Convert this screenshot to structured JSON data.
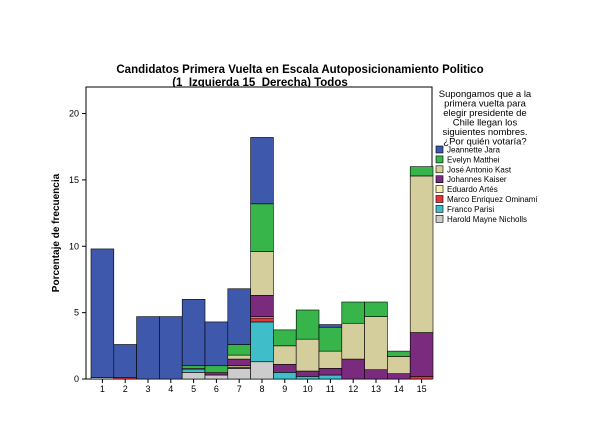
{
  "chart_data": {
    "type": "bar",
    "stacked": true,
    "title": "Candidatos Primera Vuelta en Escala Autoposicionamiento Politico",
    "subtitle": "(1_Izquierda 15_Derecha) Todos",
    "xlabel": "",
    "ylabel": "Porcentaje de frecuencia",
    "ylim": [
      0,
      22
    ],
    "yticks": [
      0,
      5,
      10,
      15,
      20
    ],
    "categories": [
      "1",
      "2",
      "3",
      "4",
      "5",
      "6",
      "7",
      "8",
      "9",
      "10",
      "11",
      "12",
      "13",
      "14",
      "15"
    ],
    "legend": {
      "title_lines": [
        "Supongamos que a la",
        "primera vuelta para",
        "elegir presidente de",
        "Chile llegan los",
        "siguientes nombres.",
        "¿Por quién votaría?"
      ],
      "placement": "right"
    },
    "series": [
      {
        "name": "Harold Mayne Nicholls",
        "color": "#cccccc",
        "values": [
          0.1,
          0,
          0,
          0,
          0.5,
          0.3,
          0.8,
          1.3,
          0,
          0,
          0,
          0,
          0,
          0,
          0
        ]
      },
      {
        "name": "Franco Parisi",
        "color": "#3fbdc8",
        "values": [
          0,
          0,
          0,
          0,
          0.2,
          0,
          0,
          3.0,
          0.5,
          0.2,
          0.3,
          0,
          0,
          0,
          0
        ]
      },
      {
        "name": "Marco Enriquez Ominami",
        "color": "#e2353c",
        "values": [
          0,
          0.1,
          0,
          0,
          0,
          0,
          0.1,
          0.3,
          0,
          0,
          0,
          0,
          0,
          0,
          0.2
        ]
      },
      {
        "name": "Eduardo Artés",
        "color": "#f7f0b0",
        "values": [
          0,
          0,
          0,
          0,
          0,
          0,
          0.1,
          0.1,
          0,
          0,
          0,
          0,
          0,
          0,
          0
        ]
      },
      {
        "name": "Johannes Kaiser",
        "color": "#7a2b7e",
        "values": [
          0,
          0,
          0,
          0,
          0,
          0.1,
          0.5,
          1.6,
          0.6,
          0.4,
          0.5,
          1.5,
          0.7,
          0.4,
          3.3
        ]
      },
      {
        "name": "José Antonio Kast",
        "color": "#d3ce9b",
        "values": [
          0,
          0,
          0,
          0,
          0.1,
          0.1,
          0.3,
          3.3,
          1.4,
          2.4,
          1.3,
          2.7,
          4.0,
          1.3,
          11.8
        ]
      },
      {
        "name": "Evelyn Matthei",
        "color": "#38b54a",
        "values": [
          0,
          0,
          0,
          0,
          0.2,
          0.5,
          0.8,
          3.6,
          1.2,
          2.2,
          1.8,
          1.6,
          1.1,
          0.4,
          0.7
        ]
      },
      {
        "name": "Jeannette Jara",
        "color": "#3e58ab",
        "values": [
          9.7,
          2.5,
          4.7,
          4.7,
          5.0,
          3.3,
          4.2,
          5.0,
          0,
          0,
          0.2,
          0,
          0,
          0,
          0
        ]
      }
    ],
    "legend_order": [
      "Jeannette Jara",
      "Evelyn Matthei",
      "José Antonio Kast",
      "Johannes Kaiser",
      "Eduardo Artés",
      "Marco Enriquez Ominami",
      "Franco Parisi",
      "Harold Mayne Nicholls"
    ],
    "grid": false
  }
}
